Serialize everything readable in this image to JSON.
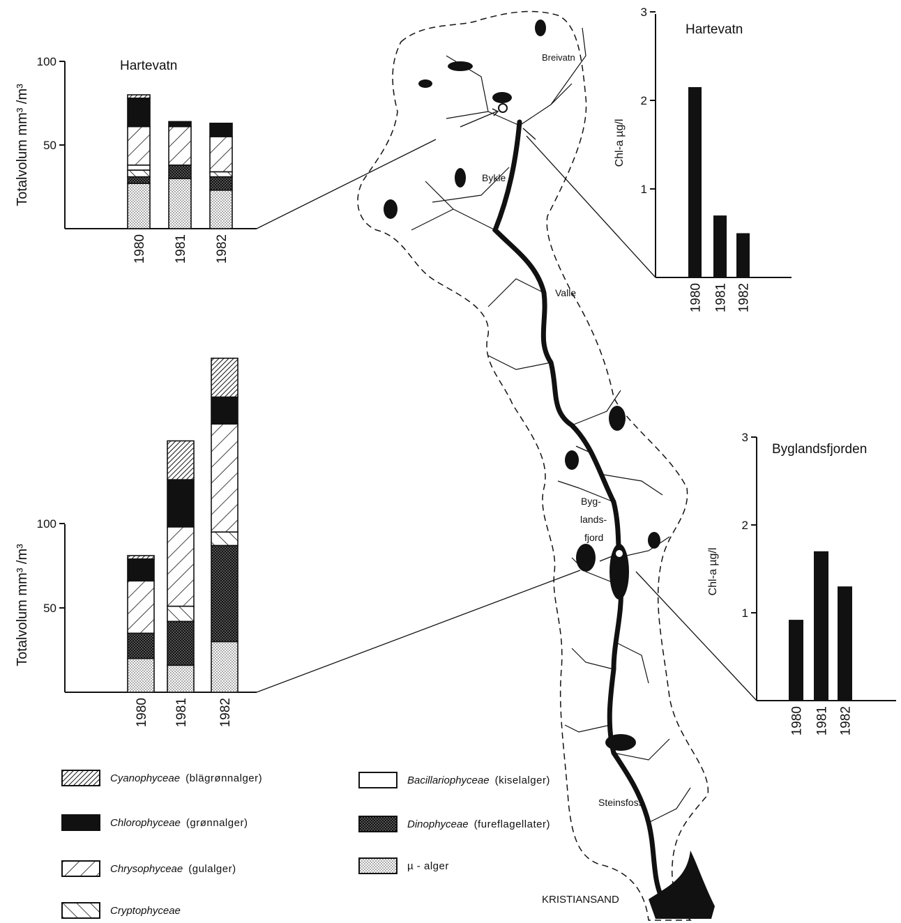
{
  "chart_data": [
    {
      "id": "hartevatn-volume",
      "type": "bar",
      "stacked": true,
      "title": "Hartevatn",
      "ylabel": "Totalvolum mm³ /m³",
      "ylim": [
        0,
        100
      ],
      "yticks": [
        50,
        100
      ],
      "categories": [
        "1980",
        "1981",
        "1982"
      ],
      "series": [
        {
          "name": "µ - alger",
          "values": [
            27,
            30,
            23
          ]
        },
        {
          "name": "Dinophyceae",
          "values": [
            4,
            8,
            8
          ]
        },
        {
          "name": "Cryptophyceae",
          "values": [
            4,
            0,
            3
          ]
        },
        {
          "name": "Bacillariophyceae",
          "values": [
            3,
            0,
            0
          ]
        },
        {
          "name": "Chrysophyceae",
          "values": [
            23,
            23,
            21
          ]
        },
        {
          "name": "Chlorophyceae",
          "values": [
            17,
            3,
            8
          ]
        },
        {
          "name": "Cyanophyceae",
          "values": [
            2,
            0,
            0
          ]
        }
      ]
    },
    {
      "id": "byglandsfjorden-volume",
      "type": "bar",
      "stacked": true,
      "title": "",
      "ylabel": "Totalvolum mm³ /m³",
      "ylim": [
        0,
        195
      ],
      "yticks": [
        50,
        100
      ],
      "categories": [
        "1980",
        "1981",
        "1982"
      ],
      "series": [
        {
          "name": "µ - alger",
          "values": [
            20,
            16,
            30
          ]
        },
        {
          "name": "Dinophyceae",
          "values": [
            15,
            26,
            57
          ]
        },
        {
          "name": "Cryptophyceae",
          "values": [
            0,
            9,
            8
          ]
        },
        {
          "name": "Bacillariophyceae",
          "values": [
            0,
            0,
            0
          ]
        },
        {
          "name": "Chrysophyceae",
          "values": [
            31,
            47,
            64
          ]
        },
        {
          "name": "Chlorophyceae",
          "values": [
            13,
            28,
            16
          ]
        },
        {
          "name": "Cyanophyceae",
          "values": [
            2,
            23,
            23
          ]
        }
      ]
    },
    {
      "id": "hartevatn-chla",
      "type": "bar",
      "title": "Hartevatn",
      "ylabel": "Chl-a µg/l",
      "ylim": [
        0,
        3
      ],
      "yticks": [
        1,
        2,
        3
      ],
      "categories": [
        "1980",
        "1981",
        "1982"
      ],
      "values": [
        2.15,
        0.7,
        0.5
      ]
    },
    {
      "id": "byglandsfjorden-chla",
      "type": "bar",
      "title": "Byglandsfjorden",
      "ylabel": "Chl-a µg/l",
      "ylim": [
        0,
        3
      ],
      "yticks": [
        1,
        2,
        3
      ],
      "categories": [
        "1980",
        "1981",
        "1982"
      ],
      "values": [
        0.92,
        1.7,
        1.3
      ]
    }
  ],
  "map": {
    "places": [
      "Breivatn",
      "Bykle",
      "Valle",
      "Byg-",
      "lands-",
      "fjord",
      "Steinsfoss",
      "KRISTIANSAND"
    ]
  },
  "legend": [
    {
      "name": "Cyanophyceae",
      "sub": "(blägrønnalger)",
      "pattern": "cyano"
    },
    {
      "name": "Chlorophyceae",
      "sub": "(grønnalger)",
      "pattern": "chloro"
    },
    {
      "name": "Chrysophyceae",
      "sub": "(gulalger)",
      "pattern": "chryso"
    },
    {
      "name": "Cryptophyceae",
      "sub": "",
      "pattern": "crypto"
    },
    {
      "name": "Bacillariophyceae",
      "sub": "(kiselalger)",
      "pattern": "bacil"
    },
    {
      "name": "Dinophyceae",
      "sub": "(fureflagellater)",
      "pattern": "dino"
    },
    {
      "name": "",
      "sub": "µ - alger",
      "pattern": "mu"
    }
  ]
}
